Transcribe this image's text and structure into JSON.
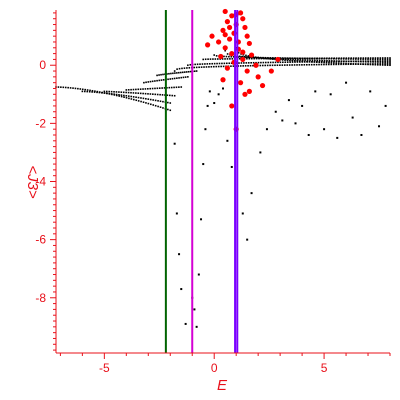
{
  "chart_data": {
    "type": "scatter",
    "xlabel": "E",
    "ylabel": "<J3>",
    "xlim": [
      -7.2,
      8.0
    ],
    "ylim": [
      -9.9,
      1.9
    ],
    "x_ticks": [
      -5,
      0,
      5
    ],
    "y_ticks": [
      0,
      -2,
      -4,
      -6,
      -8
    ],
    "grid": false,
    "axis_color": "#e8101a",
    "vertical_lines": [
      {
        "x": -2.2,
        "color": "#006400"
      },
      {
        "x": -1.0,
        "color": "#d400d4"
      },
      {
        "x": 0.95,
        "color": "#7b00ff"
      },
      {
        "x": 1.05,
        "color": "#7b00ff"
      }
    ],
    "series": [
      {
        "color": "#000000",
        "branches": [
          {
            "x_from": -7.2,
            "x_to": -2.0,
            "y_at_from": -0.75,
            "y_at_to": -1.55,
            "curve": 1.6
          },
          {
            "x_from": -6.0,
            "x_to": -2.0,
            "y_at_from": -0.9,
            "y_at_to": -1.3,
            "curve": 1.4
          },
          {
            "x_from": -5.0,
            "x_to": -1.8,
            "y_at_from": -0.9,
            "y_at_to": -1.05,
            "curve": 1.2
          },
          {
            "x_from": -4.0,
            "x_to": -1.5,
            "y_at_from": -0.85,
            "y_at_to": -0.75,
            "curve": 1.0
          },
          {
            "x_from": -3.2,
            "x_to": -1.2,
            "y_at_from": -0.6,
            "y_at_to": -0.4,
            "curve": 0.9
          },
          {
            "x_from": -2.6,
            "x_to": -0.8,
            "y_at_from": -0.35,
            "y_at_to": -0.2,
            "curve": 0.8
          },
          {
            "x_from": -1.8,
            "x_to": 8.0,
            "y_at_from": -0.2,
            "y_at_to": 0.05,
            "curve": 0.3
          },
          {
            "x_from": -1.2,
            "x_to": 8.0,
            "y_at_from": 0.0,
            "y_at_to": 0.15,
            "curve": 0.5
          },
          {
            "x_from": -0.5,
            "x_to": 8.0,
            "y_at_from": 0.2,
            "y_at_to": 0.25,
            "curve": 0.5
          },
          {
            "x_from": 0.0,
            "x_to": 8.0,
            "y_at_from": 0.35,
            "y_at_to": 0.2,
            "curve": 0.4
          },
          {
            "x_from": 0.5,
            "x_to": 8.0,
            "y_at_from": 0.5,
            "y_at_to": 0.1,
            "curve": 0.3
          },
          {
            "x_from": 1.0,
            "x_to": 8.0,
            "y_at_from": 0.6,
            "y_at_to": 0.0,
            "curve": 0.3
          }
        ],
        "points": [
          [
            -1.8,
            -2.7
          ],
          [
            -1.7,
            -5.1
          ],
          [
            -1.6,
            -6.5
          ],
          [
            -1.5,
            -7.7
          ],
          [
            -1.3,
            -8.9
          ],
          [
            -1.0,
            -8.0
          ],
          [
            -0.9,
            -8.4
          ],
          [
            -0.8,
            -9.0
          ],
          [
            -0.7,
            -7.2
          ],
          [
            -0.6,
            -5.3
          ],
          [
            -0.5,
            -3.4
          ],
          [
            -0.4,
            -2.2
          ],
          [
            -0.3,
            -1.4
          ],
          [
            -0.2,
            -0.9
          ],
          [
            0.0,
            -1.3
          ],
          [
            0.2,
            -1.0
          ],
          [
            0.4,
            -0.8
          ],
          [
            0.6,
            -2.6
          ],
          [
            0.8,
            -3.5
          ],
          [
            1.3,
            -5.1
          ],
          [
            1.5,
            -6.0
          ],
          [
            1.7,
            -4.4
          ],
          [
            2.1,
            -3.0
          ],
          [
            2.4,
            -2.2
          ],
          [
            2.8,
            -1.6
          ],
          [
            3.1,
            -1.9
          ],
          [
            3.4,
            -1.2
          ],
          [
            3.7,
            -2.0
          ],
          [
            4.0,
            -1.4
          ],
          [
            4.3,
            -2.4
          ],
          [
            4.6,
            -0.9
          ],
          [
            5.0,
            -2.2
          ],
          [
            5.3,
            -1.0
          ],
          [
            5.6,
            -2.5
          ],
          [
            6.0,
            -0.6
          ],
          [
            6.3,
            -1.8
          ],
          [
            6.7,
            -2.4
          ],
          [
            7.1,
            -0.9
          ],
          [
            7.5,
            -2.1
          ],
          [
            7.8,
            -1.4
          ]
        ]
      },
      {
        "color": "#ff0000",
        "points": [
          [
            0.5,
            1.85
          ],
          [
            1.2,
            1.8
          ],
          [
            0.8,
            1.7
          ],
          [
            1.3,
            1.6
          ],
          [
            0.6,
            1.5
          ],
          [
            1.0,
            1.4
          ],
          [
            1.4,
            1.3
          ],
          [
            0.4,
            1.2
          ],
          [
            0.9,
            1.1
          ],
          [
            1.5,
            1.0
          ],
          [
            0.7,
            0.9
          ],
          [
            0.2,
            0.8
          ],
          [
            1.6,
            0.75
          ],
          [
            0.5,
            0.6
          ],
          [
            1.1,
            0.55
          ],
          [
            0.8,
            0.4
          ],
          [
            1.7,
            0.35
          ],
          [
            0.3,
            0.3
          ],
          [
            1.3,
            0.2
          ],
          [
            0.9,
            0.1
          ],
          [
            1.9,
            0.0
          ],
          [
            0.6,
            -0.1
          ],
          [
            1.5,
            -0.2
          ],
          [
            2.0,
            -0.4
          ],
          [
            0.4,
            -0.5
          ],
          [
            1.2,
            -0.6
          ],
          [
            2.2,
            -0.7
          ],
          [
            1.6,
            -0.9
          ],
          [
            0.8,
            -1.4
          ],
          [
            1.0,
            -2.2
          ],
          [
            1.4,
            -1.0
          ],
          [
            2.6,
            -0.2
          ],
          [
            2.9,
            0.2
          ],
          [
            -0.3,
            0.7
          ],
          [
            -0.1,
            1.0
          ],
          [
            1.0,
            1.75
          ],
          [
            0.7,
            1.3
          ],
          [
            1.1,
            0.8
          ],
          [
            0.5,
            1.05
          ],
          [
            1.3,
            0.45
          ]
        ]
      }
    ]
  }
}
